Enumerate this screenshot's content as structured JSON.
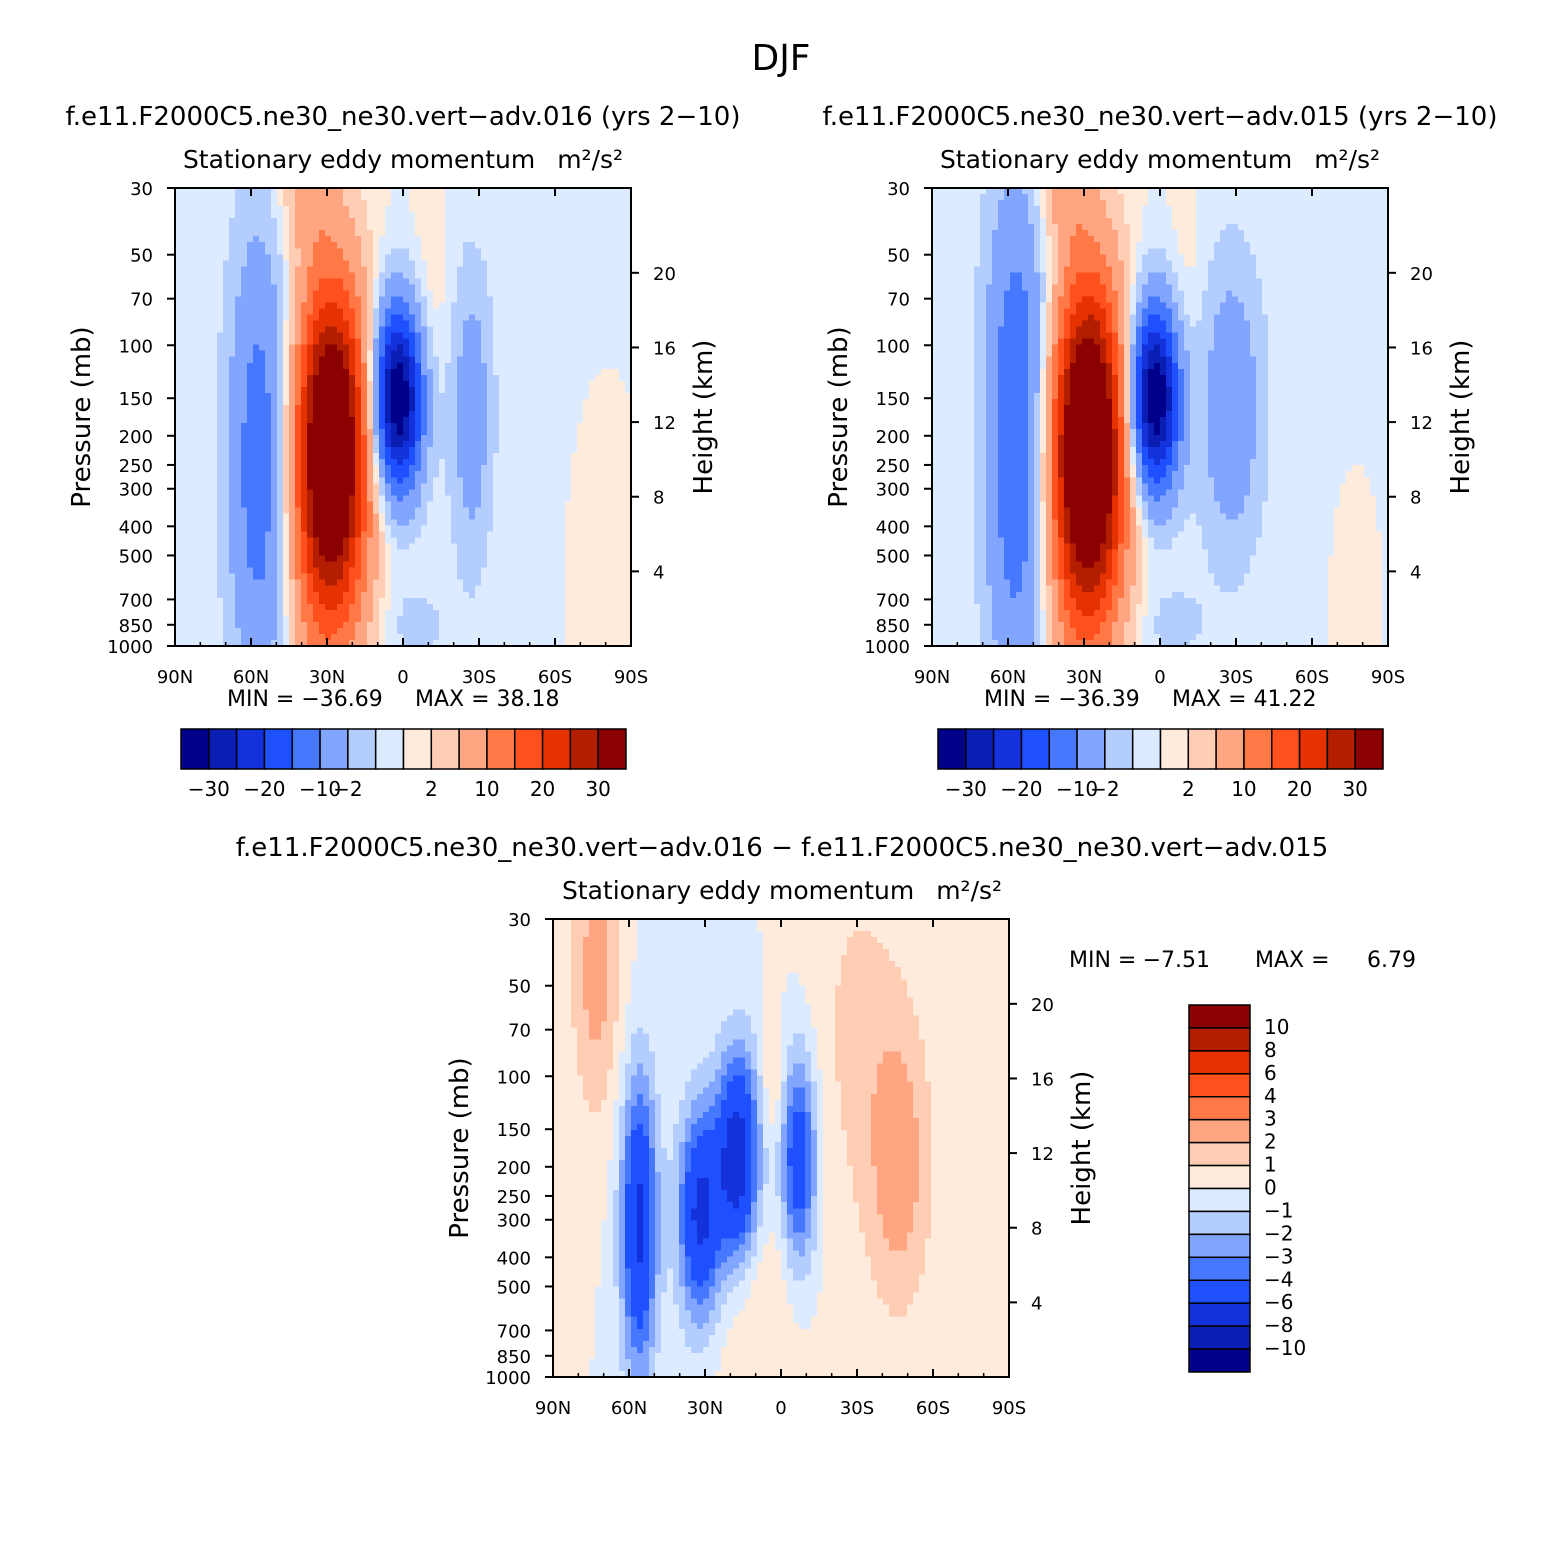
{
  "figure": {
    "title": "DJF",
    "colors": {
      "abs_levels": [
        "#00008b",
        "#0a1eb4",
        "#1432dc",
        "#1e50ff",
        "#4678ff",
        "#82a5ff",
        "#b4cdff",
        "#dcebff",
        "#ffebdc",
        "#ffcdb4",
        "#ffa582",
        "#ff7846",
        "#ff501e",
        "#e63200",
        "#b41e00",
        "#8b0000"
      ],
      "diff_levels": [
        "#00008b",
        "#0a1eb4",
        "#1432dc",
        "#1e50ff",
        "#4678ff",
        "#82a5ff",
        "#b4cdff",
        "#dcebff",
        "#ffebdc",
        "#ffcdb4",
        "#ffa582",
        "#ff7846",
        "#ff501e",
        "#e63200",
        "#b41e00",
        "#8b0000"
      ]
    }
  },
  "chart_data": [
    {
      "type": "heatmap",
      "case_title": "f.e11.F2000C5.ne30_ne30.vert−adv.016 (yrs 2−10)",
      "title": "Stationary eddy momentum",
      "units": "m²/s²",
      "ylabel": "Pressure (mb)",
      "y2label": "Height (km)",
      "x_ticks": [
        "90N",
        "60N",
        "30N",
        "0",
        "30S",
        "60S",
        "90S"
      ],
      "y_ticks": [
        "30",
        "50",
        "70",
        "100",
        "150",
        "200",
        "250",
        "300",
        "400",
        "500",
        "700",
        "850",
        "1000"
      ],
      "y2_ticks": [
        "20",
        "16",
        "12",
        "8",
        "4"
      ],
      "xlim": [
        90,
        -90
      ],
      "ylim": [
        1000,
        30
      ],
      "y_scale": "log",
      "min_label": "MIN = −36.69",
      "max_label": "MAX = 38.18",
      "min": -36.69,
      "max": 38.18,
      "colorbar_labels": [
        "−30",
        "−20",
        "−10",
        "−2",
        "2",
        "10",
        "20",
        "30"
      ],
      "colorbar_orientation": "horizontal",
      "features": [
        {
          "lat": 56,
          "p": 250,
          "amp": -14,
          "dlat": 9,
          "dlogp": 0.55
        },
        {
          "lat": 28,
          "p": 210,
          "amp": 38,
          "dlat": 10,
          "dlogp": 0.38
        },
        {
          "lat": 31,
          "p": 400,
          "amp": 9,
          "dlat": 11,
          "dlogp": 0.45
        },
        {
          "lat": 2,
          "p": 150,
          "amp": -36,
          "dlat": 7,
          "dlogp": 0.22
        },
        {
          "lat": -27,
          "p": 170,
          "amp": -8,
          "dlat": 6,
          "dlogp": 0.35
        },
        {
          "lat": 38,
          "p": 30,
          "amp": 6,
          "dlat": 8,
          "dlogp": 0.15
        },
        {
          "lat": -10,
          "p": 80,
          "amp": 2,
          "dlat": 6,
          "dlogp": 0.25
        },
        {
          "lat": -5,
          "p": 850,
          "amp": -3,
          "dlat": 10,
          "dlogp": 0.1
        },
        {
          "lat": -75,
          "p": 800,
          "amp": 2,
          "dlat": 2,
          "dlogp": 0.1
        }
      ]
    },
    {
      "type": "heatmap",
      "case_title": "f.e11.F2000C5.ne30_ne30.vert−adv.015 (yrs 2−10)",
      "title": "Stationary eddy momentum",
      "units": "m²/s²",
      "ylabel": "Pressure (mb)",
      "y2label": "Height (km)",
      "x_ticks": [
        "90N",
        "60N",
        "30N",
        "0",
        "30S",
        "60S",
        "90S"
      ],
      "y_ticks": [
        "30",
        "50",
        "70",
        "100",
        "150",
        "200",
        "250",
        "300",
        "400",
        "500",
        "700",
        "850",
        "1000"
      ],
      "y2_ticks": [
        "20",
        "16",
        "12",
        "8",
        "4"
      ],
      "xlim": [
        90,
        -90
      ],
      "ylim": [
        1000,
        30
      ],
      "y_scale": "log",
      "min_label": "MIN = −36.39",
      "max_label": "MAX = 41.22",
      "min": -36.39,
      "max": 41.22,
      "colorbar_labels": [
        "−30",
        "−20",
        "−10",
        "−2",
        "2",
        "10",
        "20",
        "30"
      ],
      "colorbar_orientation": "horizontal",
      "features": [
        {
          "lat": 56,
          "p": 200,
          "amp": -16,
          "dlat": 9,
          "dlogp": 0.6
        },
        {
          "lat": 28,
          "p": 210,
          "amp": 41,
          "dlat": 10,
          "dlogp": 0.38
        },
        {
          "lat": 31,
          "p": 400,
          "amp": 9,
          "dlat": 11,
          "dlogp": 0.45
        },
        {
          "lat": 2,
          "p": 150,
          "amp": -36,
          "dlat": 7,
          "dlogp": 0.22
        },
        {
          "lat": -28,
          "p": 160,
          "amp": -9,
          "dlat": 9,
          "dlogp": 0.35
        },
        {
          "lat": 38,
          "p": 30,
          "amp": 6,
          "dlat": 8,
          "dlogp": 0.15
        },
        {
          "lat": -10,
          "p": 80,
          "amp": 2,
          "dlat": 6,
          "dlogp": 0.25
        },
        {
          "lat": -5,
          "p": 850,
          "amp": -3,
          "dlat": 10,
          "dlogp": 0.1
        },
        {
          "lat": -75,
          "p": 800,
          "amp": 2,
          "dlat": 2,
          "dlogp": 0.1
        }
      ]
    },
    {
      "type": "heatmap",
      "case_title": "f.e11.F2000C5.ne30_ne30.vert−adv.016 − f.e11.F2000C5.ne30_ne30.vert−adv.015",
      "title": "Stationary eddy momentum",
      "units": "m²/s²",
      "ylabel": "Pressure (mb)",
      "y2label": "Height (km)",
      "x_ticks": [
        "90N",
        "60N",
        "30N",
        "0",
        "30S",
        "60S",
        "90S"
      ],
      "y_ticks": [
        "30",
        "50",
        "70",
        "100",
        "150",
        "200",
        "250",
        "300",
        "400",
        "500",
        "700",
        "850",
        "1000"
      ],
      "y2_ticks": [
        "20",
        "16",
        "12",
        "8",
        "4"
      ],
      "xlim": [
        90,
        -90
      ],
      "ylim": [
        1000,
        30
      ],
      "y_scale": "log",
      "min_label": "MIN =",
      "min_value": "−7.51",
      "max_label": "MAX =",
      "max_value": "6.79",
      "min": -7.51,
      "max": 6.79,
      "colorbar_labels": [
        "10",
        "8",
        "6",
        "4",
        "3",
        "2",
        "1",
        "0",
        "−1",
        "−2",
        "−3",
        "−4",
        "−6",
        "−8",
        "−10"
      ],
      "colorbar_orientation": "vertical",
      "features": [
        {
          "lat": 73,
          "p": 45,
          "amp": 2.5,
          "dlat": 7,
          "dlogp": 0.35
        },
        {
          "lat": 56,
          "p": 310,
          "amp": -6.5,
          "dlat": 5,
          "dlogp": 0.35
        },
        {
          "lat": 32,
          "p": 290,
          "amp": -6.5,
          "dlat": 6,
          "dlogp": 0.25
        },
        {
          "lat": 17,
          "p": 190,
          "amp": -7.5,
          "dlat": 6,
          "dlogp": 0.25
        },
        {
          "lat": -7,
          "p": 190,
          "amp": -5.5,
          "dlat": 5,
          "dlogp": 0.25
        },
        {
          "lat": -47,
          "p": 200,
          "amp": 2.5,
          "dlat": 9,
          "dlogp": 0.35
        },
        {
          "lat": 3,
          "p": 100,
          "amp": 1.5,
          "dlat": 3,
          "dlogp": 0.15
        },
        {
          "lat": -30,
          "p": 70,
          "amp": 1.2,
          "dlat": 14,
          "dlogp": 0.5
        },
        {
          "lat": 10,
          "p": 600,
          "amp": 1.2,
          "dlat": 12,
          "dlogp": 0.3
        }
      ]
    }
  ]
}
